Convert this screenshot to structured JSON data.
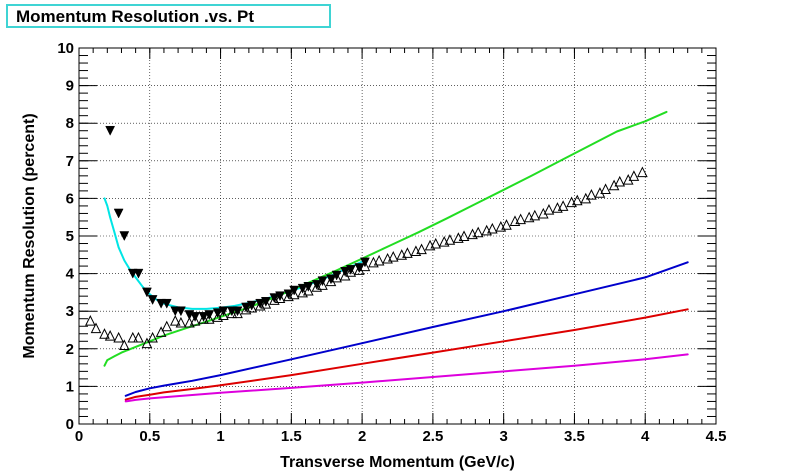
{
  "chart_data": {
    "type": "line",
    "title": "Momentum Resolution .vs. Pt",
    "xlabel": "Transverse Momentum (GeV/c)",
    "ylabel": "Momentum Resolution (percent)",
    "xlim": [
      0,
      4.5
    ],
    "ylim": [
      0,
      10
    ],
    "xticks": [
      "0",
      "0.5",
      "1",
      "1.5",
      "2",
      "2.5",
      "3",
      "3.5",
      "4",
      "4.5"
    ],
    "yticks": [
      "0",
      "1",
      "2",
      "3",
      "4",
      "5",
      "6",
      "7",
      "8",
      "9",
      "10"
    ],
    "grid": true,
    "series": [
      {
        "style": "line",
        "color": "#00e5e5",
        "x": [
          0.18,
          0.2,
          0.22,
          0.25,
          0.28,
          0.32,
          0.36,
          0.4,
          0.45,
          0.5,
          0.55,
          0.6,
          0.7,
          0.8,
          0.9,
          1.0,
          1.1,
          1.2,
          1.3,
          1.4,
          1.5,
          1.6,
          1.7,
          1.8,
          1.9,
          2.0
        ],
        "y": [
          6.0,
          5.8,
          5.5,
          5.1,
          4.7,
          4.35,
          4.1,
          3.9,
          3.65,
          3.45,
          3.3,
          3.2,
          3.1,
          3.06,
          3.06,
          3.09,
          3.14,
          3.22,
          3.31,
          3.42,
          3.54,
          3.67,
          3.82,
          3.98,
          4.15,
          4.32
        ]
      },
      {
        "style": "line",
        "color": "#22dd22",
        "x": [
          0.18,
          0.2,
          0.25,
          0.3,
          0.4,
          0.5,
          0.6,
          0.7,
          0.8,
          0.9,
          1.0,
          1.2,
          1.4,
          1.6,
          1.8,
          2.0,
          2.2,
          2.4,
          2.6,
          2.8,
          3.0,
          3.2,
          3.4,
          3.6,
          3.8,
          4.0,
          4.15
        ],
        "y": [
          1.55,
          1.7,
          1.8,
          1.9,
          2.05,
          2.2,
          2.35,
          2.48,
          2.6,
          2.72,
          2.85,
          3.1,
          3.4,
          3.72,
          4.05,
          4.4,
          4.75,
          5.1,
          5.47,
          5.85,
          6.23,
          6.61,
          7.0,
          7.39,
          7.78,
          8.05,
          8.3
        ]
      },
      {
        "style": "line",
        "color": "#0000cc",
        "x": [
          0.33,
          0.4,
          0.5,
          0.6,
          0.8,
          1.0,
          1.5,
          2.0,
          2.5,
          3.0,
          3.5,
          4.0,
          4.3
        ],
        "y": [
          0.75,
          0.85,
          0.95,
          1.02,
          1.15,
          1.3,
          1.72,
          2.15,
          2.58,
          3.0,
          3.45,
          3.9,
          4.3
        ]
      },
      {
        "style": "line",
        "color": "#dd0000",
        "x": [
          0.33,
          0.4,
          0.5,
          0.6,
          0.8,
          1.0,
          1.5,
          2.0,
          2.5,
          3.0,
          3.5,
          4.0,
          4.3
        ],
        "y": [
          0.65,
          0.72,
          0.78,
          0.84,
          0.93,
          1.03,
          1.3,
          1.6,
          1.9,
          2.2,
          2.5,
          2.83,
          3.05
        ]
      },
      {
        "style": "line",
        "color": "#dd00dd",
        "x": [
          0.33,
          0.4,
          0.5,
          0.6,
          0.8,
          1.0,
          1.5,
          2.0,
          2.5,
          3.0,
          3.5,
          4.0,
          4.3
        ],
        "y": [
          0.6,
          0.64,
          0.68,
          0.71,
          0.77,
          0.83,
          0.96,
          1.1,
          1.25,
          1.4,
          1.55,
          1.72,
          1.85
        ]
      },
      {
        "style": "markers",
        "marker": "filled-down-triangle",
        "color": "#000000",
        "x": [
          0.22,
          0.28,
          0.32,
          0.38,
          0.42,
          0.48,
          0.52,
          0.58,
          0.62,
          0.68,
          0.72,
          0.78,
          0.82,
          0.88,
          0.92,
          0.98,
          1.02,
          1.08,
          1.12,
          1.18,
          1.22,
          1.28,
          1.32,
          1.38,
          1.42,
          1.48,
          1.52,
          1.58,
          1.62,
          1.68,
          1.72,
          1.78,
          1.82,
          1.88,
          1.92,
          1.98,
          2.02
        ],
        "y": [
          7.8,
          5.6,
          5.0,
          4.0,
          4.0,
          3.5,
          3.3,
          3.2,
          3.2,
          3.0,
          3.0,
          2.9,
          2.85,
          2.85,
          2.9,
          2.95,
          3.0,
          3.0,
          3.0,
          3.1,
          3.15,
          3.2,
          3.25,
          3.35,
          3.4,
          3.45,
          3.55,
          3.6,
          3.65,
          3.7,
          3.8,
          3.85,
          3.95,
          4.05,
          4.1,
          4.15,
          4.3
        ]
      },
      {
        "style": "markers",
        "marker": "open-up-triangle",
        "color": "#000000",
        "x": [
          0.08,
          0.12,
          0.18,
          0.22,
          0.28,
          0.32,
          0.38,
          0.42,
          0.48,
          0.52,
          0.58,
          0.62,
          0.68,
          0.72,
          0.78,
          0.82,
          0.88,
          0.92,
          0.98,
          1.02,
          1.08,
          1.12,
          1.18,
          1.22,
          1.28,
          1.32,
          1.38,
          1.42,
          1.48,
          1.52,
          1.58,
          1.62,
          1.68,
          1.72,
          1.78,
          1.82,
          1.88,
          1.92,
          1.98,
          2.02,
          2.08,
          2.12,
          2.18,
          2.22,
          2.28,
          2.32,
          2.38,
          2.42,
          2.48,
          2.52,
          2.58,
          2.62,
          2.68,
          2.72,
          2.78,
          2.82,
          2.88,
          2.92,
          2.98,
          3.02,
          3.08,
          3.12,
          3.18,
          3.22,
          3.28,
          3.32,
          3.38,
          3.42,
          3.48,
          3.52,
          3.58,
          3.62,
          3.68,
          3.72,
          3.78,
          3.82,
          3.88,
          3.92,
          3.98
        ],
        "y": [
          2.75,
          2.55,
          2.4,
          2.35,
          2.3,
          2.1,
          2.3,
          2.3,
          2.15,
          2.3,
          2.45,
          2.6,
          2.75,
          2.7,
          2.7,
          2.75,
          2.8,
          2.8,
          2.85,
          2.9,
          2.95,
          2.95,
          3.05,
          3.1,
          3.15,
          3.2,
          3.3,
          3.35,
          3.4,
          3.45,
          3.5,
          3.55,
          3.65,
          3.7,
          3.8,
          3.9,
          3.95,
          4.05,
          4.1,
          4.2,
          4.3,
          4.35,
          4.4,
          4.45,
          4.5,
          4.55,
          4.6,
          4.65,
          4.75,
          4.8,
          4.85,
          4.9,
          4.95,
          5.0,
          5.05,
          5.1,
          5.15,
          5.2,
          5.25,
          5.3,
          5.4,
          5.45,
          5.5,
          5.55,
          5.6,
          5.7,
          5.75,
          5.8,
          5.9,
          5.95,
          6.0,
          6.1,
          6.15,
          6.25,
          6.35,
          6.45,
          6.5,
          6.6,
          6.7
        ]
      }
    ]
  }
}
